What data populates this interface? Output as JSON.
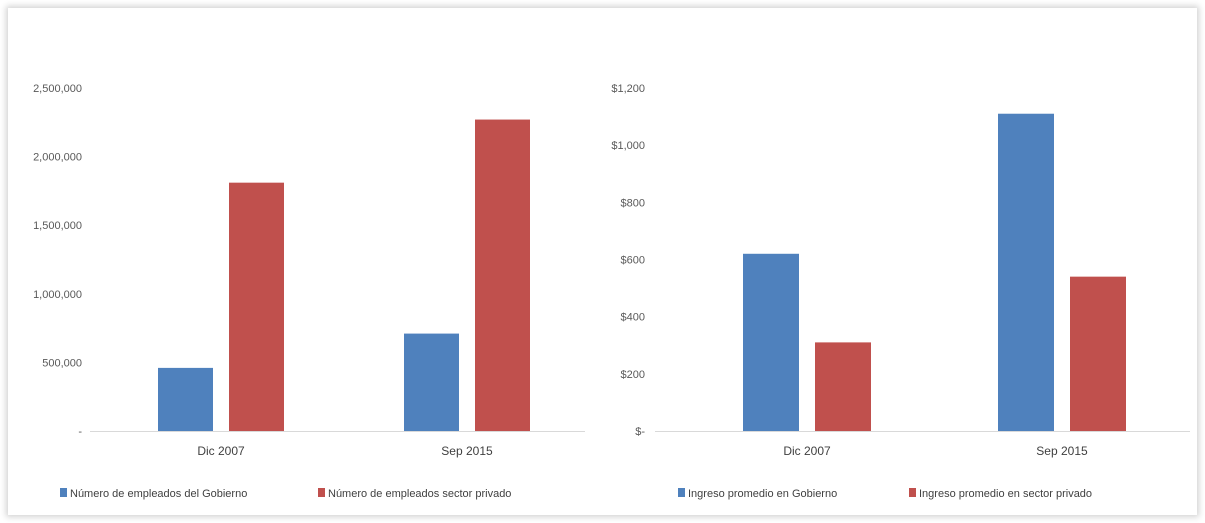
{
  "chart_data": [
    {
      "type": "bar",
      "categories": [
        "Dic 2007",
        "Sep 2015"
      ],
      "series": [
        {
          "name": "Número de empleados del Gobierno",
          "values": [
            460000,
            710000
          ],
          "color": "#4f81bd"
        },
        {
          "name": "Número de empleados sector privado",
          "values": [
            1810000,
            2270000
          ],
          "color": "#c0504d"
        }
      ],
      "ylim": [
        0,
        2500000
      ],
      "yticks": [
        0,
        500000,
        1000000,
        1500000,
        2000000,
        2500000
      ],
      "ytick_labels": [
        "-",
        "500,000",
        "1,000,000",
        "1,500,000",
        "2,000,000",
        "2,500,000"
      ],
      "grid": false,
      "legend": "bottom-left"
    },
    {
      "type": "bar",
      "categories": [
        "Dic 2007",
        "Sep 2015"
      ],
      "series": [
        {
          "name": "Ingreso promedio en Gobierno",
          "values": [
            620,
            1110
          ],
          "color": "#4f81bd"
        },
        {
          "name": "Ingreso promedio en sector privado",
          "values": [
            310,
            540
          ],
          "color": "#c0504d"
        }
      ],
      "ylim": [
        0,
        1200
      ],
      "yticks": [
        0,
        200,
        400,
        600,
        800,
        1000,
        1200
      ],
      "ytick_labels": [
        "$-",
        "$200",
        "$400",
        "$600",
        "$800",
        "$1,000",
        "$1,200"
      ],
      "grid": false,
      "legend": "bottom-left"
    }
  ]
}
